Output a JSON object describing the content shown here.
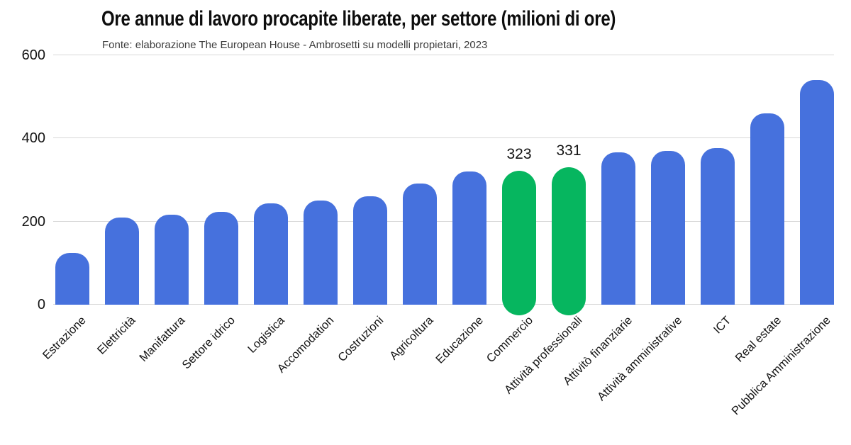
{
  "chart_data": {
    "type": "bar",
    "title": "Ore annue di lavoro procapite liberate, per settore (milioni di ore)",
    "subtitle": "Fonte: elaborazione The European House - Ambrosetti su modelli propietari, 2023",
    "categories": [
      "Estrazione",
      "Elettricità",
      "Manifattura",
      "Settore idrico",
      "Logistica",
      "Accomodation",
      "Costruzioni",
      "Agricoltura",
      "Educazione",
      "Commercio",
      "Attività professionali",
      "Attivitò finanziarie",
      "Attività amministrative",
      "ICT",
      "Real estate",
      "Pubblica Amministrazione"
    ],
    "values": [
      125,
      210,
      216,
      224,
      243,
      250,
      260,
      292,
      320,
      323,
      331,
      367,
      370,
      377,
      460,
      540
    ],
    "highlighted_categories": [
      "Commercio",
      "Attività professionali"
    ],
    "data_labels": [
      {
        "category": "Commercio",
        "text": "323"
      },
      {
        "category": "Attività professionali",
        "text": "331"
      }
    ],
    "ylim": [
      0,
      600
    ],
    "yticks": [
      "0",
      "200",
      "400",
      "600"
    ],
    "xlabel": "",
    "ylabel": "",
    "grid": true,
    "legend": "none",
    "x_label_rotation_deg": -45,
    "colors": {
      "bar": "#4671DD",
      "highlight": "#06B65F",
      "gridline": "#D8D8D8",
      "title": "#0D0D0D",
      "subtitle": "#3C3C3C",
      "tick_label": "#141414",
      "data_label": "#141414",
      "background": "#FFFFFF"
    }
  }
}
